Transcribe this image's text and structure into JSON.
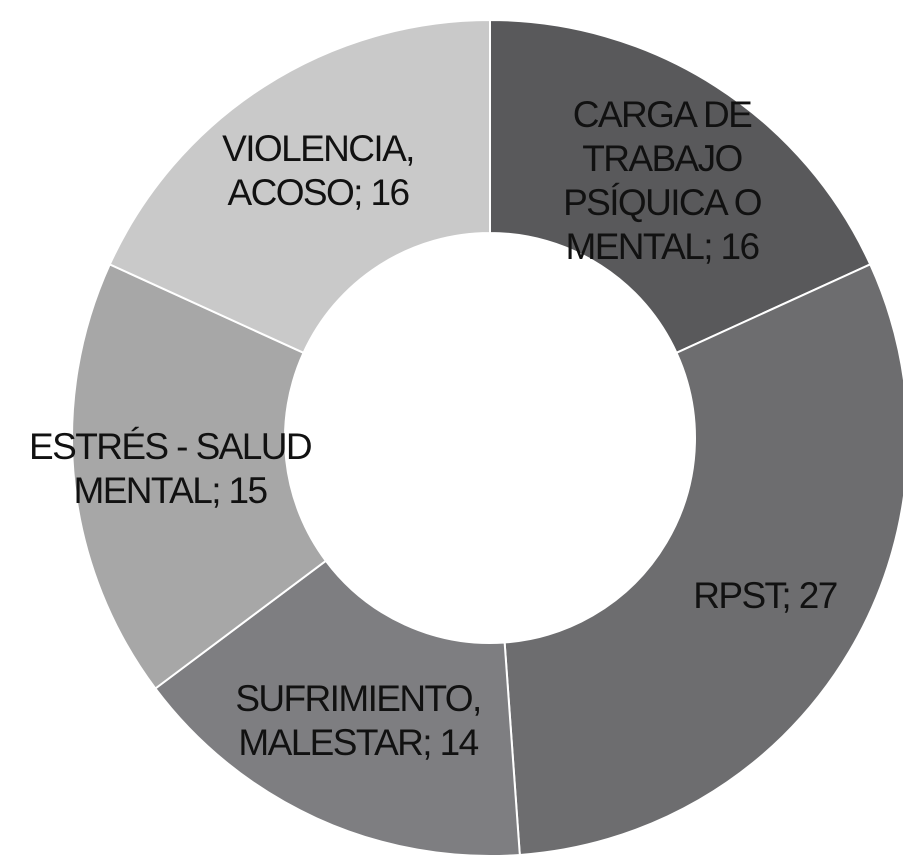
{
  "chart_data": {
    "type": "donut",
    "values": [
      16,
      27,
      14,
      15,
      16
    ],
    "value_labels": [
      "CARGA DE TRABAJO PSÍQUICA O MENTAL; 16",
      "RPST; 27",
      "SUFRIMIENTO, MALESTAR; 14",
      "ESTRÉS - SALUD MENTAL; 15",
      "VIOLENCIA, ACOSO; 16"
    ],
    "colors": [
      "#59595b",
      "#6d6d6f",
      "#7e7e81",
      "#a7a7a7",
      "#c9c9c9"
    ]
  }
}
